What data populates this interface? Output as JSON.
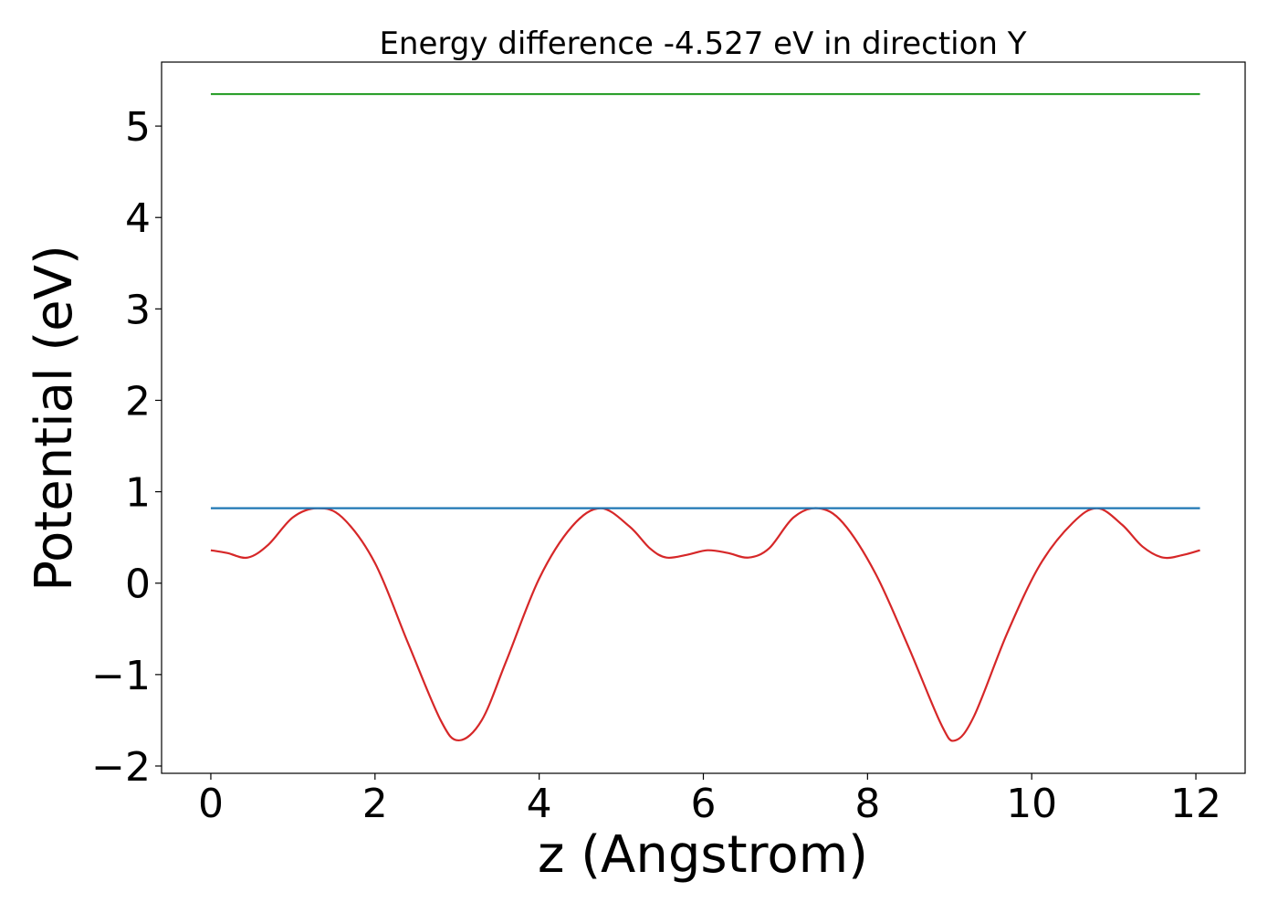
{
  "chart_data": {
    "type": "line",
    "title": "Energy difference -4.527 eV in direction Y",
    "xlabel": "z (Angstrom)",
    "ylabel": "Potential (eV)",
    "xlim": [
      -0.6,
      12.6
    ],
    "ylim": [
      -2.08,
      5.7
    ],
    "xticks": [
      0,
      2,
      4,
      6,
      8,
      10,
      12
    ],
    "xtick_labels": [
      "0",
      "2",
      "4",
      "6",
      "8",
      "10",
      "12"
    ],
    "yticks": [
      -2,
      -1,
      0,
      1,
      2,
      3,
      4,
      5
    ],
    "ytick_labels": [
      "−2",
      "−1",
      "0",
      "1",
      "2",
      "3",
      "4",
      "5"
    ],
    "grid": false,
    "series": [
      {
        "color": "#d62728",
        "x": [
          0,
          0.2,
          0.45,
          0.7,
          1.0,
          1.3,
          1.6,
          2.0,
          2.4,
          2.8,
          3.02,
          3.3,
          3.6,
          4.0,
          4.4,
          4.75,
          5.1,
          5.35,
          5.55,
          5.8,
          6.05,
          6.3,
          6.55,
          6.8,
          7.1,
          7.4,
          7.7,
          8.1,
          8.5,
          8.9,
          9.07,
          9.3,
          9.7,
          10.1,
          10.5,
          10.8,
          11.1,
          11.35,
          11.6,
          11.85,
          12.05
        ],
        "y": [
          0.36,
          0.33,
          0.28,
          0.42,
          0.72,
          0.82,
          0.72,
          0.22,
          -0.65,
          -1.5,
          -1.72,
          -1.5,
          -0.85,
          0.05,
          0.62,
          0.82,
          0.62,
          0.38,
          0.28,
          0.31,
          0.36,
          0.33,
          0.28,
          0.38,
          0.72,
          0.82,
          0.66,
          0.1,
          -0.7,
          -1.55,
          -1.72,
          -1.45,
          -0.55,
          0.2,
          0.66,
          0.82,
          0.64,
          0.4,
          0.28,
          0.31,
          0.36
        ]
      },
      {
        "color": "#1f77b4",
        "x": [
          0,
          12.05
        ],
        "y": [
          0.82,
          0.82
        ]
      },
      {
        "color": "#2ca02c",
        "x": [
          0,
          12.05
        ],
        "y": [
          5.35,
          5.35
        ]
      }
    ]
  }
}
